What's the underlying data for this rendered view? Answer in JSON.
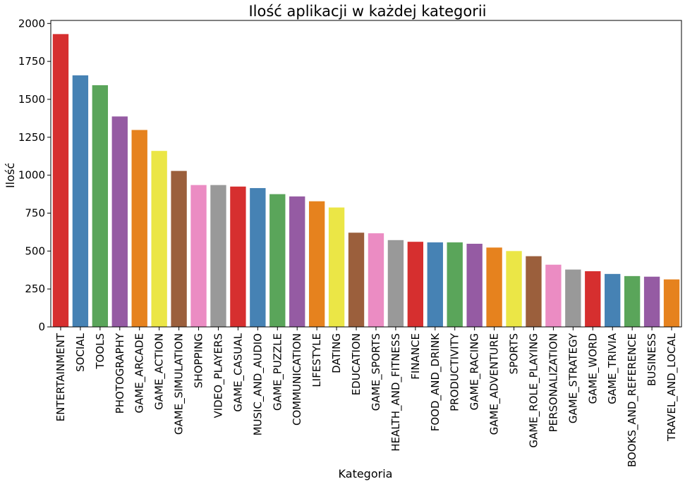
{
  "chart_data": {
    "type": "bar",
    "title": "Ilość aplikacji w każdej kategorii",
    "xlabel": "Kategoria",
    "ylabel": "Ilość",
    "ylim": [
      0,
      2020
    ],
    "yticks": [
      0,
      250,
      500,
      750,
      1000,
      1250,
      1500,
      1750,
      2000
    ],
    "grid": false,
    "palette": [
      "#d62f2f",
      "#4682b4",
      "#5aa55a",
      "#955ba3",
      "#e6821e",
      "#ebe646",
      "#9b5f3c",
      "#eb8cc3",
      "#999999"
    ],
    "categories": [
      "ENTERTAINMENT",
      "SOCIAL",
      "TOOLS",
      "PHOTOGRAPHY",
      "GAME_ARCADE",
      "GAME_ACTION",
      "GAME_SIMULATION",
      "SHOPPING",
      "VIDEO_PLAYERS",
      "GAME_CASUAL",
      "MUSIC_AND_AUDIO",
      "GAME_PUZZLE",
      "COMMUNICATION",
      "LIFESTYLE",
      "DATING",
      "EDUCATION",
      "GAME_SPORTS",
      "HEALTH_AND_FITNESS",
      "FINANCE",
      "FOOD_AND_DRINK",
      "PRODUCTIVITY",
      "GAME_RACING",
      "GAME_ADVENTURE",
      "SPORTS",
      "GAME_ROLE_PLAYING",
      "PERSONALIZATION",
      "GAME_STRATEGY",
      "GAME_WORD",
      "GAME_TRIVIA",
      "BOOKS_AND_REFERENCE",
      "BUSINESS",
      "TRAVEL_AND_LOCAL"
    ],
    "values": [
      1930,
      1658,
      1593,
      1387,
      1298,
      1160,
      1028,
      935,
      935,
      925,
      915,
      875,
      860,
      828,
      787,
      621,
      617,
      572,
      561,
      557,
      557,
      548,
      523,
      500,
      466,
      410,
      378,
      367,
      349,
      335,
      331,
      313
    ]
  }
}
